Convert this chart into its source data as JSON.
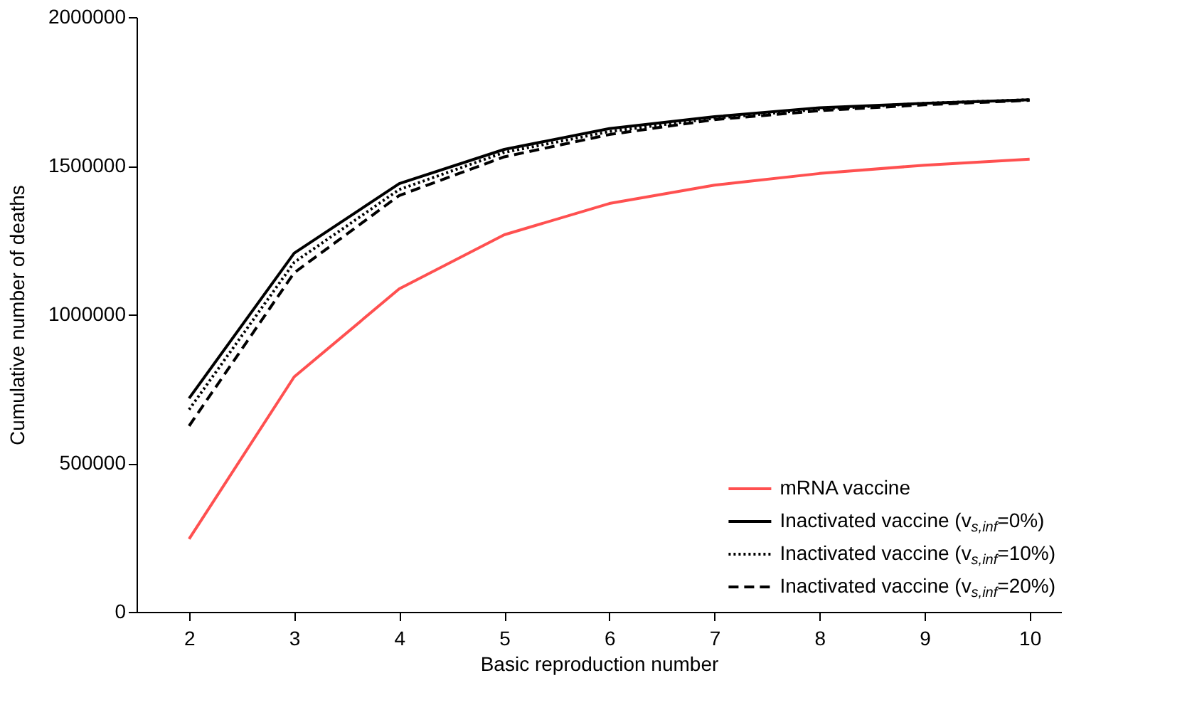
{
  "chart_data": {
    "type": "line",
    "xlabel": "Basic reproduction number",
    "ylabel": "Cumulative number of deaths",
    "x": [
      2,
      3,
      4,
      5,
      6,
      7,
      8,
      9,
      10
    ],
    "series": [
      {
        "name": "mRNA vaccine",
        "color": "#ff5050",
        "line_style": "solid",
        "values": [
          245000,
          790000,
          1086000,
          1268000,
          1373000,
          1435000,
          1474000,
          1502000,
          1522000
        ]
      },
      {
        "name": "Inactivated vaccine (v$_{s,inf}$=0%)",
        "color": "#000000",
        "line_style": "solid",
        "values": [
          718000,
          1206000,
          1440000,
          1555000,
          1625000,
          1665000,
          1695000,
          1710000,
          1722000
        ]
      },
      {
        "name": "Inactivated vaccine (v$_{s,inf}$=10%)",
        "color": "#000000",
        "line_style": "dotted",
        "values": [
          680000,
          1175000,
          1420000,
          1545000,
          1615000,
          1660000,
          1690000,
          1710000,
          1722000
        ]
      },
      {
        "name": "Inactivated vaccine (v$_{s,inf}$=20%)",
        "color": "#000000",
        "line_style": "dashed",
        "values": [
          625000,
          1140000,
          1400000,
          1530000,
          1605000,
          1655000,
          1685000,
          1705000,
          1720000
        ]
      }
    ],
    "xlim": [
      1.5,
      10.3
    ],
    "xticks": [
      2,
      3,
      4,
      5,
      6,
      7,
      8,
      9,
      10
    ],
    "ylim": [
      0,
      2000000
    ],
    "yticks": [
      0,
      500000,
      1000000,
      1500000,
      2000000
    ],
    "grid": false,
    "legend": "bottom right",
    "marker": "none"
  }
}
